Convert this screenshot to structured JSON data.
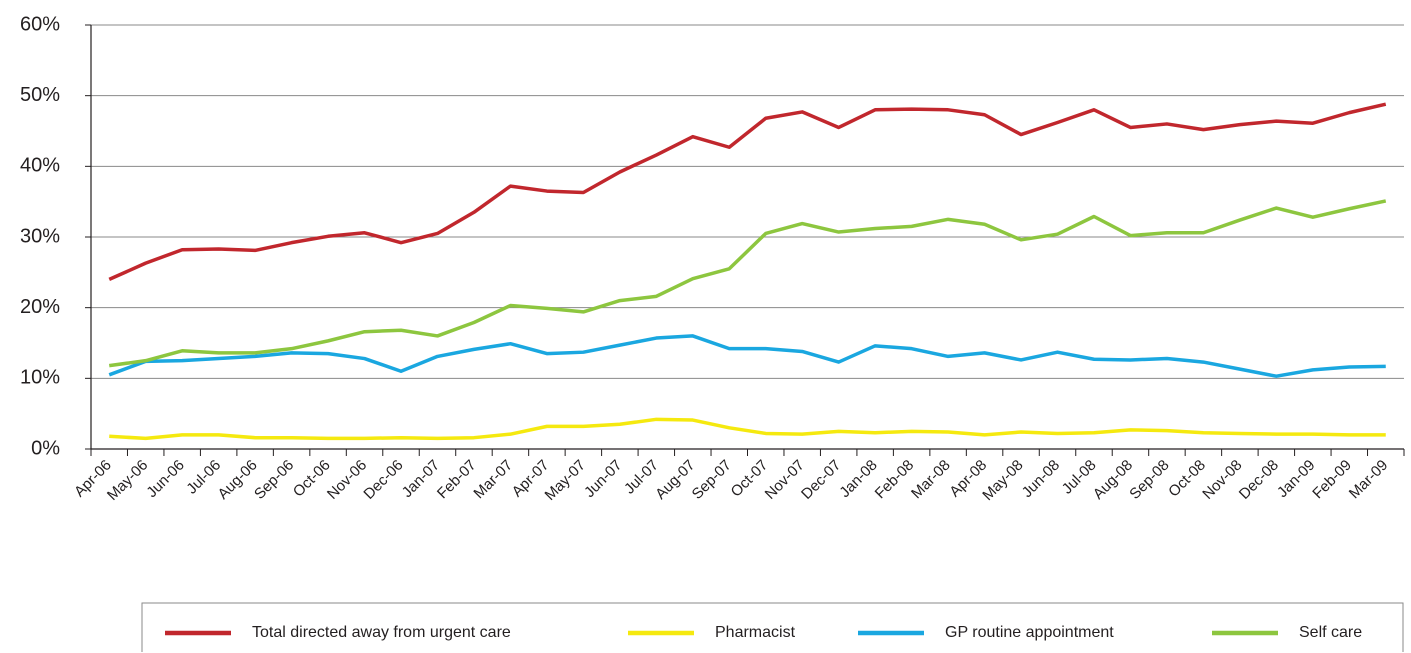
{
  "chart_data": {
    "type": "line",
    "categories": [
      "Apr-06",
      "May-06",
      "Jun-06",
      "Jul-06",
      "Aug-06",
      "Sep-06",
      "Oct-06",
      "Nov-06",
      "Dec-06",
      "Jan-07",
      "Feb-07",
      "Mar-07",
      "Apr-07",
      "May-07",
      "Jun-07",
      "Jul-07",
      "Aug-07",
      "Sep-07",
      "Oct-07",
      "Nov-07",
      "Dec-07",
      "Jan-08",
      "Feb-08",
      "Mar-08",
      "Apr-08",
      "May-08",
      "Jun-08",
      "Jul-08",
      "Aug-08",
      "Sep-08",
      "Oct-08",
      "Nov-08",
      "Dec-08",
      "Jan-09",
      "Feb-09",
      "Mar-09"
    ],
    "series": [
      {
        "name": "Total directed away from urgent care",
        "color": "#c1272d",
        "values": [
          24,
          26.3,
          28.2,
          28.3,
          28.1,
          29.2,
          30.1,
          30.6,
          29.2,
          30.5,
          33.5,
          37.2,
          36.5,
          36.3,
          39.2,
          41.6,
          44.2,
          42.7,
          46.8,
          47.7,
          45.5,
          48,
          48.1,
          48,
          47.3,
          44.5,
          46.2,
          48,
          45.5,
          46,
          45.2,
          45.9,
          46.4,
          46.1,
          47.6,
          48.8
        ]
      },
      {
        "name": "Pharmacist",
        "color": "#f5e90f",
        "values": [
          1.8,
          1.5,
          2,
          2,
          1.6,
          1.6,
          1.5,
          1.5,
          1.6,
          1.5,
          1.6,
          2.1,
          3.2,
          3.2,
          3.5,
          4.2,
          4.1,
          3,
          2.2,
          2.1,
          2.5,
          2.3,
          2.5,
          2.4,
          2,
          2.4,
          2.2,
          2.3,
          2.7,
          2.6,
          2.3,
          2.2,
          2.1,
          2.1,
          2,
          2
        ]
      },
      {
        "name": "GP routine appointment",
        "color": "#1aa7e0",
        "values": [
          10.5,
          12.4,
          12.5,
          12.8,
          13.1,
          13.6,
          13.5,
          12.8,
          11,
          13.1,
          14.1,
          14.9,
          13.5,
          13.7,
          14.7,
          15.7,
          16,
          14.2,
          14.2,
          13.8,
          12.3,
          14.6,
          14.2,
          13.1,
          13.6,
          12.6,
          13.7,
          12.7,
          12.6,
          12.8,
          12.3,
          11.3,
          10.3,
          11.2,
          11.6,
          11.7
        ]
      },
      {
        "name": "Self care",
        "color": "#8dc63f",
        "values": [
          11.8,
          12.5,
          13.9,
          13.6,
          13.6,
          14.2,
          15.3,
          16.6,
          16.8,
          16,
          17.9,
          20.3,
          19.9,
          19.4,
          21,
          21.6,
          24.1,
          25.5,
          30.5,
          31.9,
          30.7,
          31.2,
          31.5,
          32.5,
          31.8,
          29.6,
          30.4,
          32.9,
          30.2,
          30.6,
          30.6,
          32.4,
          34.1,
          32.8,
          34,
          35.1
        ]
      }
    ],
    "ylim": [
      0,
      60
    ],
    "yticks": [
      {
        "value": 0,
        "label": "0%"
      },
      {
        "value": 10,
        "label": "10%"
      },
      {
        "value": 20,
        "label": "20%"
      },
      {
        "value": 30,
        "label": "30%"
      },
      {
        "value": 40,
        "label": "40%"
      },
      {
        "value": 50,
        "label": "50%"
      },
      {
        "value": 60,
        "label": "60%"
      }
    ],
    "grid": true
  }
}
